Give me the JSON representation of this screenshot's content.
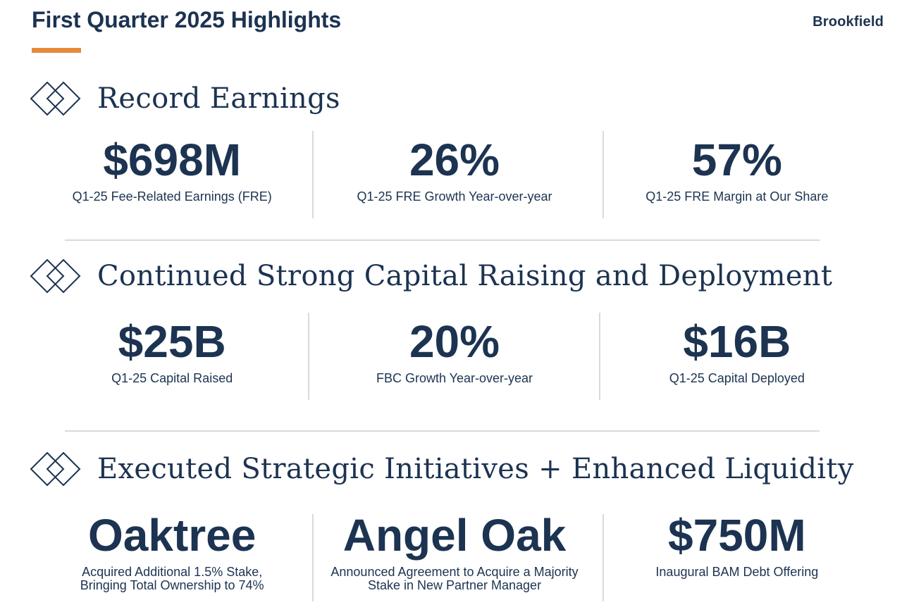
{
  "header": {
    "title": "First Quarter 2025 Highlights",
    "logo_text": "Brookfield",
    "accent_color": "#e8893a",
    "text_color": "#1c3351"
  },
  "sections": [
    {
      "heading": "Record Earnings",
      "icon": "diamond-icon",
      "metrics": [
        {
          "value": "$698M",
          "label_lines": [
            "Q1-25 Fee-Related Earnings (FRE)"
          ]
        },
        {
          "value": "26%",
          "label_lines": [
            "Q1-25 FRE Growth Year-over-year"
          ]
        },
        {
          "value": "57%",
          "label_lines": [
            "Q1-25 FRE Margin at Our Share"
          ]
        }
      ]
    },
    {
      "heading": "Continued Strong Capital Raising and Deployment",
      "icon": "diamond-icon",
      "metrics": [
        {
          "value": "$25B",
          "label_lines": [
            "Q1-25 Capital Raised"
          ]
        },
        {
          "value": "20%",
          "label_lines": [
            "FBC Growth Year-over-year"
          ]
        },
        {
          "value": "$16B",
          "label_lines": [
            "Q1-25 Capital Deployed"
          ]
        }
      ]
    },
    {
      "heading": "Executed Strategic Initiatives + Enhanced Liquidity",
      "icon": "diamond-icon",
      "metrics": [
        {
          "value": "Oaktree",
          "label_lines": [
            "Acquired Additional 1.5% Stake,",
            "Bringing Total Ownership to 74%"
          ]
        },
        {
          "value": "Angel Oak",
          "label_lines": [
            "Announced Agreement to Acquire a Majority",
            "Stake in New Partner Manager"
          ]
        },
        {
          "value": "$750M",
          "label_lines": [
            "Inaugural BAM Debt Offering"
          ]
        }
      ]
    }
  ]
}
